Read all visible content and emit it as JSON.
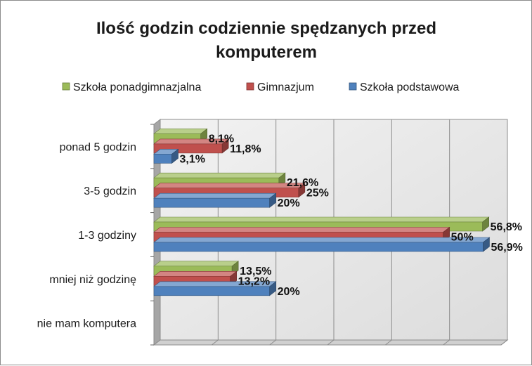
{
  "chart_data": {
    "type": "bar",
    "orientation": "horizontal",
    "style": "3d-clustered",
    "title_lines": [
      "Ilość godzin codziennie spędzanych przed",
      "komputerem"
    ],
    "categories": [
      "ponad 5 godzin",
      "3-5 godzin",
      "1-3 godziny",
      "mniej niż godzinę",
      "nie mam komputera"
    ],
    "series": [
      {
        "name": "Szkoła ponadgimnazjalna",
        "color": "#9bbb59",
        "values": [
          8.1,
          21.6,
          56.8,
          13.5,
          null
        ],
        "labels": [
          "8,1%",
          "21,6%",
          "56,8%",
          "13,5%",
          ""
        ]
      },
      {
        "name": "Gimnazjum",
        "color": "#c0504d",
        "values": [
          11.8,
          25,
          50,
          13.2,
          null
        ],
        "labels": [
          "11,8%",
          "25%",
          "50%",
          "13,2%",
          ""
        ]
      },
      {
        "name": "Szkoła podstawowa",
        "color": "#4f81bd",
        "values": [
          3.1,
          20,
          56.9,
          20,
          null
        ],
        "labels": [
          "3,1%",
          "20%",
          "56,9%",
          "20%",
          ""
        ]
      }
    ],
    "legend_order": [
      0,
      1,
      2
    ],
    "legend_position": "top",
    "xlim": [
      0,
      60
    ],
    "grid": true,
    "axis_tick_labels_visible": false
  }
}
